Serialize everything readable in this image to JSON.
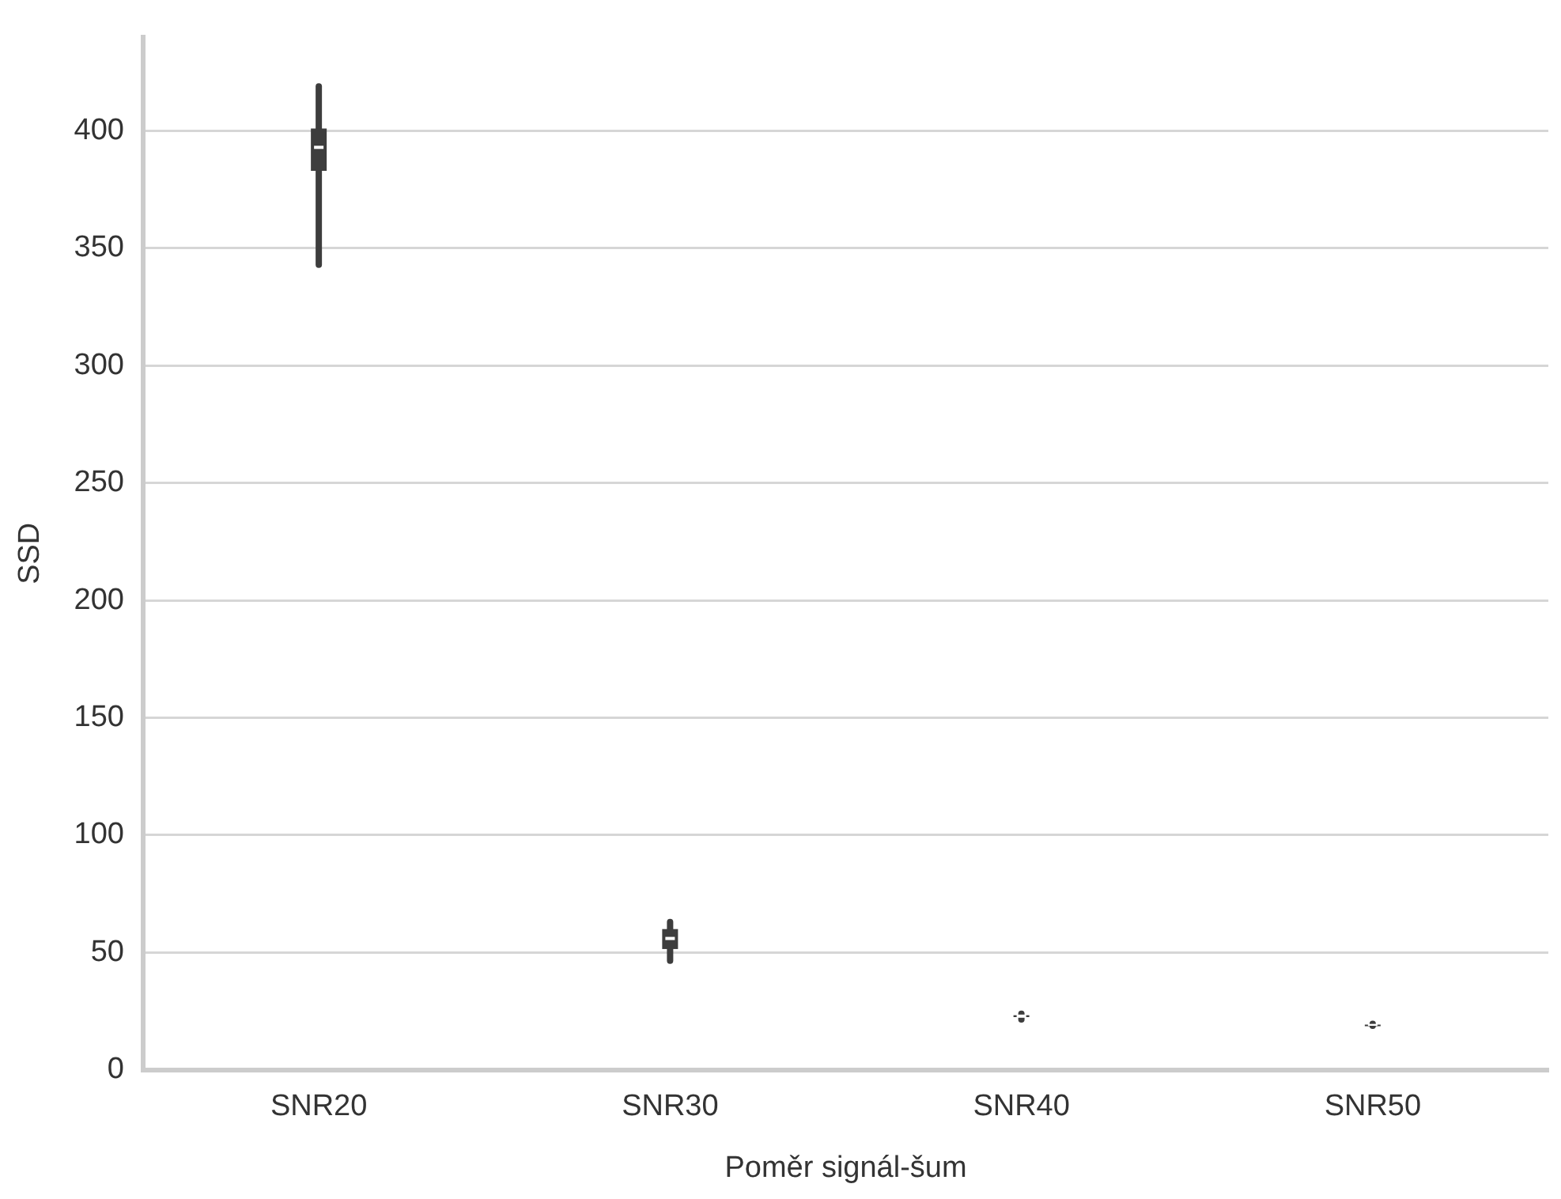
{
  "chart_data": {
    "type": "box",
    "xlabel": "Poměr signál-šum",
    "ylabel": "SSD",
    "categories": [
      "SNR20",
      "SNR30",
      "SNR40",
      "SNR50"
    ],
    "boxes": [
      {
        "low": 343,
        "q1": 383,
        "median": 393,
        "q3": 401,
        "high": 419
      },
      {
        "low": 46.5,
        "q1": 51.5,
        "median": 56,
        "q3": 60,
        "high": 63
      },
      {
        "low": 21.5,
        "q1": 22.5,
        "median": 22.9,
        "q3": 23.3,
        "high": 23.9
      },
      {
        "low": 18.8,
        "q1": 19.1,
        "median": 19.2,
        "q3": 19.3,
        "high": 19.6
      }
    ],
    "color": "#3d3d3d",
    "ylim": [
      0,
      440
    ],
    "yticks": [
      0,
      50,
      100,
      150,
      200,
      250,
      300,
      350,
      400
    ],
    "grid": "y",
    "legend": false
  }
}
